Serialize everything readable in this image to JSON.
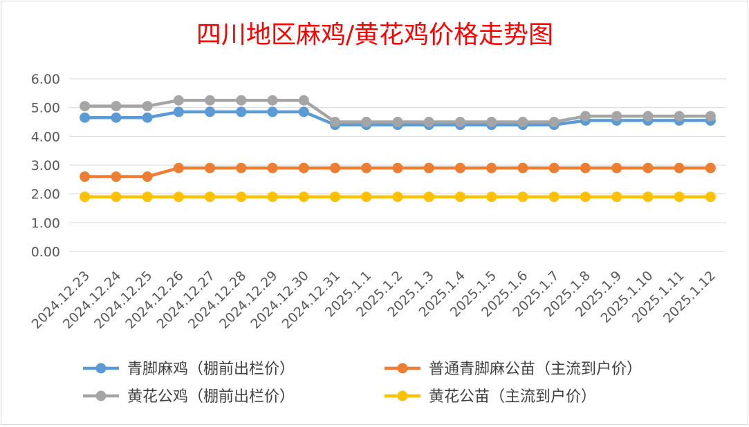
{
  "chart_data": {
    "type": "line",
    "title": "四川地区麻鸡/黄花鸡价格走势图",
    "xlabel": "",
    "ylabel": "",
    "ylim": [
      0,
      6
    ],
    "yticks": [
      "0.00",
      "1.00",
      "2.00",
      "3.00",
      "4.00",
      "5.00",
      "6.00"
    ],
    "grid": true,
    "legend_position": "bottom",
    "categories": [
      "2024.12.23",
      "2024.12.24",
      "2024.12.25",
      "2024.12.26",
      "2024.12.27",
      "2024.12.28",
      "2024.12.29",
      "2024.12.30",
      "2024.12.31",
      "2025.1.1",
      "2025.1.2",
      "2025.1.3",
      "2025.1.4",
      "2025.1.5",
      "2025.1.6",
      "2025.1.7",
      "2025.1.8",
      "2025.1.9",
      "2025.1.10",
      "2025.1.11",
      "2025.1.12"
    ],
    "series": [
      {
        "name": "青脚麻鸡（棚前出栏价）",
        "color": "#5b9bd5",
        "values": [
          4.65,
          4.65,
          4.65,
          4.85,
          4.85,
          4.85,
          4.85,
          4.85,
          4.4,
          4.4,
          4.4,
          4.4,
          4.4,
          4.4,
          4.4,
          4.4,
          4.55,
          4.55,
          4.55,
          4.55,
          4.55
        ]
      },
      {
        "name": "普通青脚麻公苗（主流到户价）",
        "color": "#ed7d31",
        "values": [
          2.6,
          2.6,
          2.6,
          2.9,
          2.9,
          2.9,
          2.9,
          2.9,
          2.9,
          2.9,
          2.9,
          2.9,
          2.9,
          2.9,
          2.9,
          2.9,
          2.9,
          2.9,
          2.9,
          2.9,
          2.9
        ]
      },
      {
        "name": "黄花公鸡（棚前出栏价）",
        "color": "#a5a5a5",
        "values": [
          5.05,
          5.05,
          5.05,
          5.25,
          5.25,
          5.25,
          5.25,
          5.25,
          4.5,
          4.5,
          4.5,
          4.5,
          4.5,
          4.5,
          4.5,
          4.5,
          4.7,
          4.7,
          4.7,
          4.7,
          4.7
        ]
      },
      {
        "name": "黄花公苗（主流到户价）",
        "color": "#ffc000",
        "values": [
          1.9,
          1.9,
          1.9,
          1.9,
          1.9,
          1.9,
          1.9,
          1.9,
          1.9,
          1.9,
          1.9,
          1.9,
          1.9,
          1.9,
          1.9,
          1.9,
          1.9,
          1.9,
          1.9,
          1.9,
          1.9
        ]
      }
    ],
    "title_color": "#ff0000"
  }
}
